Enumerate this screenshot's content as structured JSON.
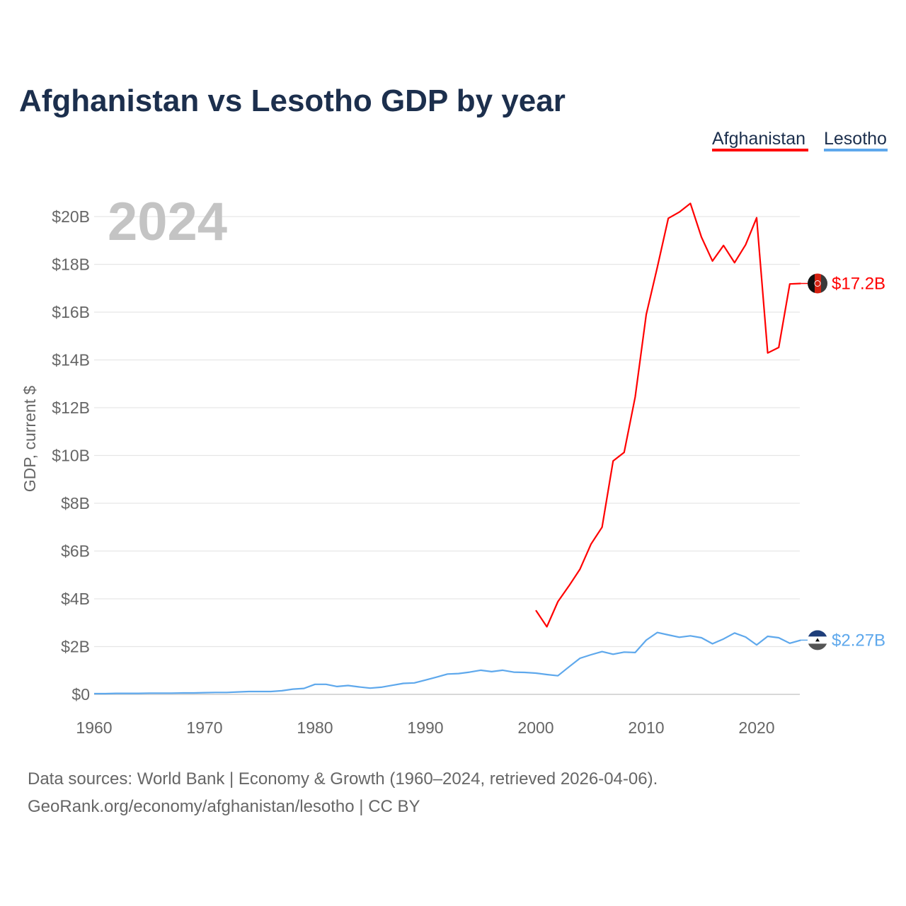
{
  "title": "Afghanistan vs Lesotho GDP by year",
  "year_display": "2024",
  "source_lines": [
    "Data sources: World Bank | Economy & Growth (1960–2024, retrieved 2026-04-06).",
    "GeoRank.org/economy/afghanistan/lesotho | CC BY"
  ],
  "chart_data": {
    "type": "line",
    "title": "Afghanistan vs Lesotho GDP by year",
    "xlabel": "",
    "ylabel": "GDP, current $",
    "xlim": [
      1960,
      2024
    ],
    "ylim": [
      0,
      20
    ],
    "grid": true,
    "legend_placement": "top-right",
    "x_ticks": [
      "1960",
      "1970",
      "1980",
      "1990",
      "2000",
      "2010",
      "2020"
    ],
    "y_ticks": [
      {
        "value": 0,
        "label": "$0"
      },
      {
        "value": 2,
        "label": "$2B"
      },
      {
        "value": 4,
        "label": "$4B"
      },
      {
        "value": 6,
        "label": "$6B"
      },
      {
        "value": 8,
        "label": "$8B"
      },
      {
        "value": 10,
        "label": "$10B"
      },
      {
        "value": 12,
        "label": "$12B"
      },
      {
        "value": 14,
        "label": "$14B"
      },
      {
        "value": 16,
        "label": "$16B"
      },
      {
        "value": 18,
        "label": "$18B"
      },
      {
        "value": 20,
        "label": "$20B"
      }
    ],
    "units": "billions USD",
    "series": [
      {
        "name": "Afghanistan",
        "color": "#ff0000",
        "end_label": "$17.2B",
        "x": [
          2000,
          2001,
          2002,
          2003,
          2004,
          2005,
          2006,
          2007,
          2008,
          2009,
          2010,
          2011,
          2012,
          2013,
          2014,
          2015,
          2016,
          2017,
          2018,
          2019,
          2020,
          2021,
          2022,
          2023,
          2024
        ],
        "values": [
          3.52,
          2.83,
          3.88,
          4.54,
          5.24,
          6.29,
          7.0,
          9.77,
          10.13,
          12.45,
          15.9,
          17.87,
          19.93,
          20.19,
          20.55,
          19.14,
          18.14,
          18.79,
          18.07,
          18.82,
          19.95,
          14.29,
          14.52,
          17.18,
          17.2
        ]
      },
      {
        "name": "Lesotho",
        "color": "#5ea8ec",
        "end_label": "$2.27B",
        "x": [
          1960,
          1961,
          1962,
          1963,
          1964,
          1965,
          1966,
          1967,
          1968,
          1969,
          1970,
          1971,
          1972,
          1973,
          1974,
          1975,
          1976,
          1977,
          1978,
          1979,
          1980,
          1981,
          1982,
          1983,
          1984,
          1985,
          1986,
          1987,
          1988,
          1989,
          1990,
          1991,
          1992,
          1993,
          1994,
          1995,
          1996,
          1997,
          1998,
          1999,
          2000,
          2001,
          2002,
          2003,
          2004,
          2005,
          2006,
          2007,
          2008,
          2009,
          2010,
          2011,
          2012,
          2013,
          2014,
          2015,
          2016,
          2017,
          2018,
          2019,
          2020,
          2021,
          2022,
          2023,
          2024
        ],
        "values": [
          0.03,
          0.03,
          0.04,
          0.04,
          0.04,
          0.05,
          0.05,
          0.05,
          0.06,
          0.06,
          0.07,
          0.08,
          0.08,
          0.1,
          0.12,
          0.12,
          0.12,
          0.15,
          0.22,
          0.25,
          0.42,
          0.42,
          0.33,
          0.37,
          0.31,
          0.26,
          0.3,
          0.38,
          0.46,
          0.48,
          0.6,
          0.72,
          0.85,
          0.87,
          0.93,
          1.01,
          0.95,
          1.01,
          0.93,
          0.92,
          0.89,
          0.83,
          0.78,
          1.15,
          1.51,
          1.66,
          1.79,
          1.68,
          1.77,
          1.75,
          2.27,
          2.59,
          2.49,
          2.39,
          2.45,
          2.37,
          2.12,
          2.32,
          2.57,
          2.4,
          2.07,
          2.43,
          2.37,
          2.14,
          2.27
        ]
      }
    ]
  }
}
